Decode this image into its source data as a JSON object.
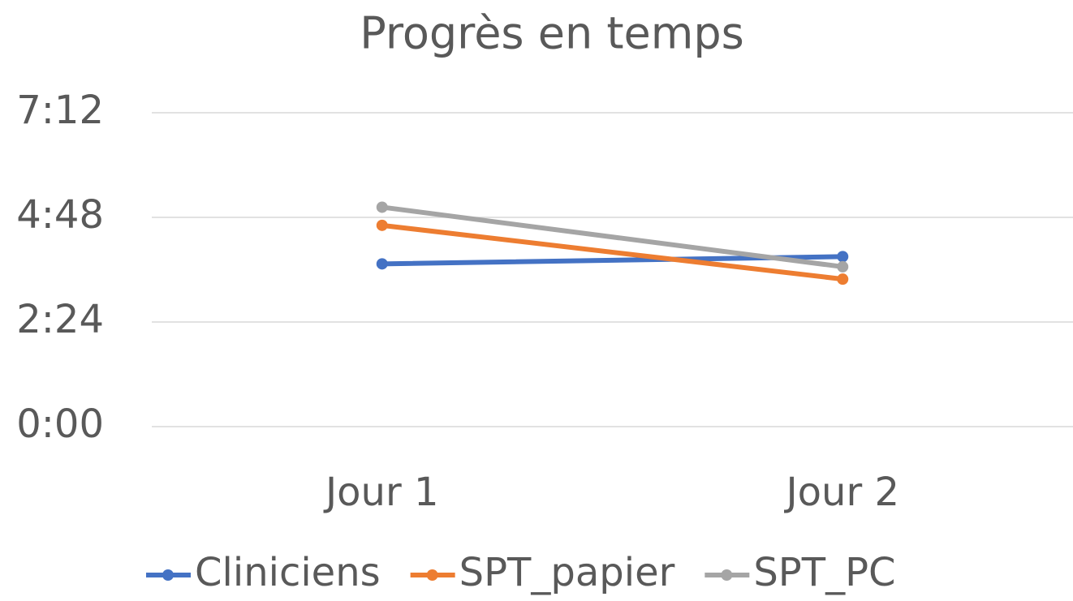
{
  "chart_data": {
    "type": "line",
    "title": "Progrès en temps",
    "categories": [
      "Jour 1",
      "Jour 2"
    ],
    "series": [
      {
        "name": "Cliniciens",
        "color": "#4472c4",
        "values": [
          224,
          234
        ]
      },
      {
        "name": "SPT_papier",
        "color": "#ed7d31",
        "values": [
          277,
          203
        ]
      },
      {
        "name": "SPT_PC",
        "color": "#a5a5a5",
        "values": [
          302,
          220
        ]
      }
    ],
    "ylim": [
      0,
      432
    ],
    "yticks": [
      {
        "value": 0,
        "label": "0:00"
      },
      {
        "value": 144,
        "label": "2:24"
      },
      {
        "value": 288,
        "label": "4:48"
      },
      {
        "value": 432,
        "label": "7:12"
      }
    ],
    "grid": true,
    "legend": "bottom"
  }
}
